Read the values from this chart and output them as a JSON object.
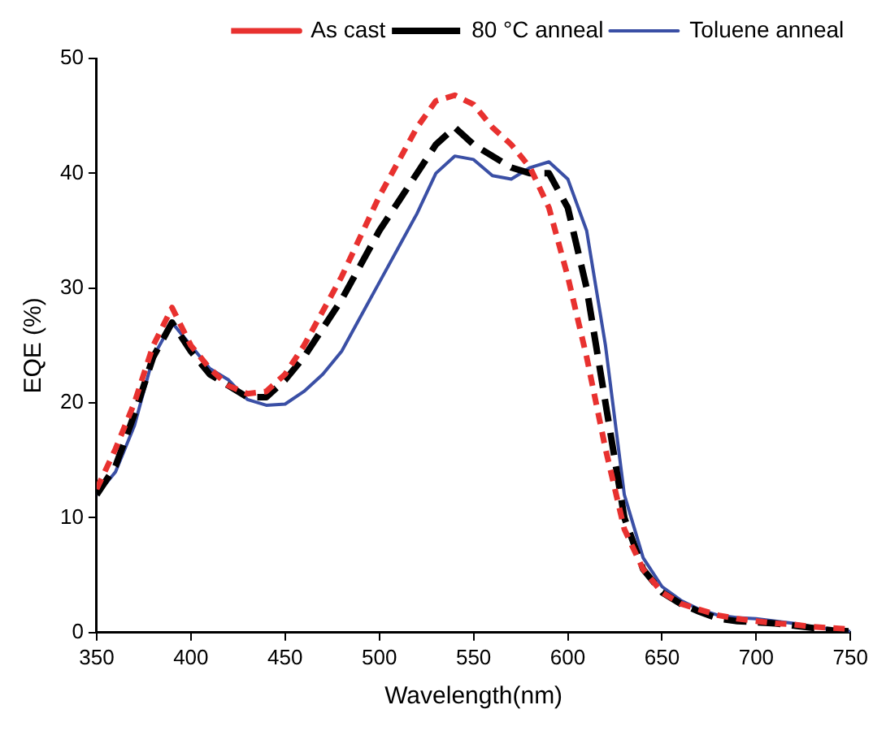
{
  "chart_data": {
    "type": "line",
    "xlabel": "Wavelength(nm)",
    "ylabel": "EQE (%)",
    "xlim": [
      350,
      750
    ],
    "xticks": [
      350,
      400,
      450,
      500,
      550,
      600,
      650,
      700,
      750
    ],
    "ylim": [
      0,
      50
    ],
    "yticks": [
      0,
      10,
      20,
      30,
      40,
      50
    ],
    "grid": false,
    "legend": "top right",
    "marker": "none",
    "x": [
      350,
      360,
      370,
      380,
      390,
      400,
      410,
      420,
      430,
      440,
      450,
      460,
      470,
      480,
      490,
      500,
      510,
      520,
      530,
      540,
      550,
      560,
      570,
      580,
      590,
      600,
      610,
      620,
      630,
      640,
      650,
      660,
      670,
      680,
      690,
      700,
      710,
      720,
      730,
      740,
      750
    ],
    "series": [
      {
        "name": "As cast",
        "color": "#e8312f",
        "line_style": "dashed",
        "values": [
          12.5,
          16,
          20,
          25,
          28.3,
          25,
          23,
          21.5,
          20.8,
          21,
          22.5,
          25,
          28,
          31,
          34.5,
          38,
          41,
          44,
          46.3,
          46.8,
          46,
          44,
          42.5,
          40.5,
          37,
          31,
          24,
          16,
          9,
          5.5,
          3.5,
          2.5,
          2,
          1.5,
          1.2,
          1,
          0.8,
          0.7,
          0.5,
          0.4,
          0.3
        ]
      },
      {
        "name": "80 °C anneal",
        "color": "#000000",
        "line_style": "dashed",
        "values": [
          12,
          14.5,
          19,
          24,
          27,
          24.5,
          22.5,
          21.5,
          20.5,
          20.5,
          22,
          24,
          26.5,
          29,
          32,
          35,
          37.5,
          40,
          42.5,
          44,
          42.5,
          41.5,
          40.5,
          40,
          40,
          37,
          30,
          20,
          10,
          5.5,
          3.5,
          2.5,
          1.8,
          1.2,
          1,
          0.9,
          0.8,
          0.6,
          0.4,
          0.2,
          0.1
        ]
      },
      {
        "name": "Toluene anneal",
        "color": "#3a4fa5",
        "line_style": "solid",
        "values": [
          12,
          14,
          18,
          24,
          27,
          25,
          23,
          22,
          20.3,
          19.8,
          19.9,
          21,
          22.5,
          24.5,
          27.5,
          30.5,
          33.5,
          36.5,
          40,
          41.5,
          41.2,
          39.8,
          39.5,
          40.5,
          41,
          39.5,
          35,
          25,
          12,
          6.5,
          4,
          2.8,
          2,
          1.5,
          1.3,
          1.2,
          1,
          0.8,
          0.5,
          0.3,
          0.1
        ]
      }
    ]
  }
}
